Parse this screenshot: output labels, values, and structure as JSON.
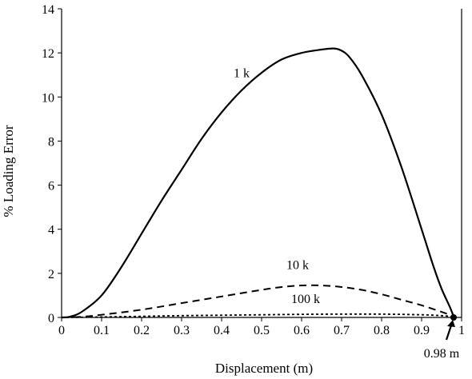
{
  "chart_data": {
    "type": "line",
    "title": "",
    "xlabel": "Displacement  (m)",
    "ylabel": "% Loading Error",
    "xlim": [
      0,
      1
    ],
    "ylim": [
      0,
      14
    ],
    "xticks": [
      0,
      0.1,
      0.2,
      0.3,
      0.4,
      0.5,
      0.6,
      0.7,
      0.8,
      0.9,
      1
    ],
    "xtick_labels": [
      "0",
      "0.1",
      "0.2",
      "0.3",
      "0.4",
      "0.5",
      "0.6",
      "0.7",
      "0.8",
      "0.9",
      "1"
    ],
    "yticks": [
      0,
      2,
      4,
      6,
      8,
      10,
      12,
      14
    ],
    "ytick_labels": [
      "0",
      "2",
      "4",
      "6",
      "8",
      "10",
      "12",
      "14"
    ],
    "grid": false,
    "legend": "none",
    "series": [
      {
        "name": "1 k",
        "style": "solid",
        "x": [
          0,
          0.02,
          0.05,
          0.1,
          0.15,
          0.2,
          0.25,
          0.3,
          0.35,
          0.4,
          0.45,
          0.5,
          0.55,
          0.6,
          0.65,
          0.68,
          0.7,
          0.72,
          0.75,
          0.8,
          0.85,
          0.9,
          0.93,
          0.95,
          0.97,
          0.98
        ],
        "y": [
          0,
          0.03,
          0.25,
          1.0,
          2.3,
          3.8,
          5.3,
          6.7,
          8.1,
          9.3,
          10.3,
          11.1,
          11.7,
          12.0,
          12.15,
          12.2,
          12.1,
          11.8,
          11.0,
          9.2,
          6.8,
          4.0,
          2.3,
          1.3,
          0.5,
          0.05
        ]
      },
      {
        "name": "10 k",
        "style": "dashed",
        "x": [
          0,
          0.05,
          0.1,
          0.2,
          0.3,
          0.4,
          0.5,
          0.55,
          0.6,
          0.65,
          0.7,
          0.75,
          0.8,
          0.85,
          0.9,
          0.95,
          0.98
        ],
        "y": [
          0,
          0.03,
          0.12,
          0.35,
          0.65,
          0.95,
          1.25,
          1.38,
          1.45,
          1.45,
          1.38,
          1.25,
          1.05,
          0.8,
          0.55,
          0.25,
          0.05
        ]
      },
      {
        "name": "100 k",
        "style": "dotted",
        "x": [
          0,
          0.1,
          0.2,
          0.3,
          0.4,
          0.5,
          0.6,
          0.7,
          0.8,
          0.9,
          0.95,
          0.98
        ],
        "y": [
          0,
          0.02,
          0.05,
          0.08,
          0.1,
          0.12,
          0.14,
          0.15,
          0.15,
          0.12,
          0.08,
          0.03
        ]
      }
    ],
    "annotations": [
      {
        "text": "1 k",
        "x": 0.45,
        "y": 10.9
      },
      {
        "text": "10 k",
        "x": 0.59,
        "y": 2.2
      },
      {
        "text": "100 k",
        "x": 0.61,
        "y": 0.65
      },
      {
        "text": "0.98 m",
        "x": 0.98,
        "y": 0,
        "arrow": true
      }
    ],
    "marker": {
      "x": 0.98,
      "y": 0
    },
    "colors": {
      "line": "#000000"
    }
  }
}
